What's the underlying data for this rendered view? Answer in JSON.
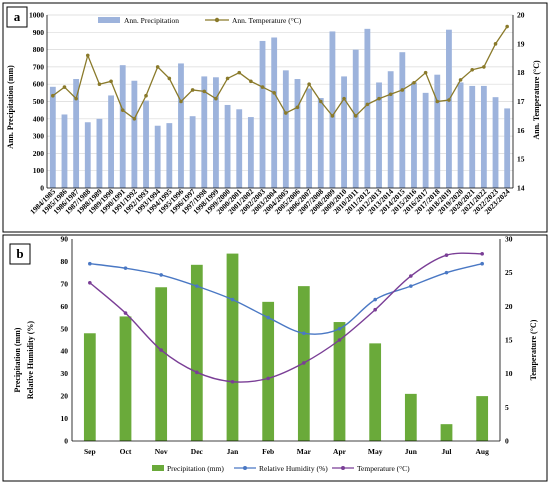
{
  "chart_data": [
    {
      "type": "bar",
      "panel_label": "a",
      "categories": [
        "1984/1985",
        "1985/1986",
        "1986/1987",
        "1987/1988",
        "1988/1989",
        "1989/1990",
        "1990/1991",
        "1991/1992",
        "1992/1993",
        "1993/1994",
        "1994/1995",
        "1995/1996",
        "1996/1997",
        "1997/1998",
        "1998/1999",
        "1999/2000",
        "2000/2001",
        "2001/2002",
        "2002/2003",
        "2003/2004",
        "2004/2005",
        "2005/2006",
        "2006/2007",
        "2007/2008",
        "2008/2009",
        "2009/2010",
        "2010/2011",
        "2011/2012",
        "2012/2013",
        "2013/2014",
        "2014/2015",
        "2015/2016",
        "2016/2017",
        "2017/2018",
        "2018/2019",
        "2019/2020",
        "2020/2021",
        "2021/2022",
        "2022/2023",
        "2023/2024"
      ],
      "series": [
        {
          "name": "Ann. Precipitation",
          "type": "bar",
          "axis": "left",
          "color": "#9db3dc",
          "values": [
            585,
            425,
            630,
            380,
            400,
            535,
            710,
            620,
            505,
            360,
            375,
            720,
            415,
            645,
            640,
            480,
            455,
            410,
            850,
            870,
            680,
            630,
            575,
            520,
            905,
            645,
            800,
            920,
            610,
            675,
            785,
            610,
            550,
            655,
            915,
            610,
            590,
            590,
            525,
            460
          ]
        },
        {
          "name": "Ann. Temperature (°C)",
          "type": "line",
          "axis": "right",
          "color": "#8a7a2a",
          "values": [
            17.2,
            17.5,
            17.1,
            18.6,
            17.6,
            17.7,
            16.7,
            16.4,
            17.2,
            18.2,
            17.8,
            17.0,
            17.4,
            17.35,
            17.1,
            17.8,
            18.0,
            17.7,
            17.5,
            17.3,
            16.6,
            16.8,
            17.6,
            17.0,
            16.5,
            17.1,
            16.5,
            16.9,
            17.1,
            17.25,
            17.4,
            17.65,
            18.0,
            17.0,
            17.05,
            17.75,
            18.1,
            18.2,
            19.0,
            19.6
          ]
        }
      ],
      "ylabel": "Ann. Precipitation (mm)",
      "y2label": "Ann. Temperature (°C)",
      "ylim": [
        0,
        1000
      ],
      "y2lim": [
        14,
        20
      ],
      "yticks": [
        0,
        100,
        200,
        300,
        400,
        500,
        600,
        700,
        800,
        900,
        1000
      ],
      "y2ticks": [
        14,
        15,
        16,
        17,
        18,
        19,
        20
      ],
      "grid": true,
      "legend": "top-center"
    },
    {
      "type": "bar",
      "panel_label": "b",
      "categories": [
        "Sep",
        "Oct",
        "Nov",
        "Dec",
        "Jan",
        "Feb",
        "Mar",
        "Apr",
        "May",
        "Jun",
        "Jul",
        "Aug"
      ],
      "series": [
        {
          "name": "Precipitation (mm)",
          "type": "bar",
          "axis": "left",
          "color": "#6aaa3a",
          "values": [
            48,
            55.5,
            68.5,
            78.5,
            83.5,
            62,
            69,
            53,
            43.5,
            21,
            7.5,
            20
          ]
        },
        {
          "name": "Relative Humidity (%)",
          "type": "line",
          "axis": "left",
          "color": "#4a78c4",
          "values": [
            79,
            77,
            74,
            69,
            63,
            55,
            48,
            50,
            63,
            69,
            75,
            79
          ]
        },
        {
          "name": "Temperature (°C)",
          "type": "line",
          "axis": "right",
          "color": "#7a3e96",
          "values": [
            23.5,
            19,
            13.5,
            10.2,
            8.8,
            9.3,
            11.6,
            15,
            19.5,
            24.5,
            27.6,
            27.8
          ]
        }
      ],
      "ylabel_left_outer": "Precipitation (mm)",
      "ylabel_left_inner": "Relative Humidity (%)",
      "y2label": "Temperature (°C)",
      "ylim": [
        0,
        90
      ],
      "y2lim": [
        0,
        30
      ],
      "yticks": [
        0,
        10,
        20,
        30,
        40,
        50,
        60,
        70,
        80,
        90
      ],
      "y2ticks": [
        0,
        5,
        10,
        15,
        20,
        25,
        30
      ],
      "grid": false,
      "legend": "bottom-center"
    }
  ]
}
